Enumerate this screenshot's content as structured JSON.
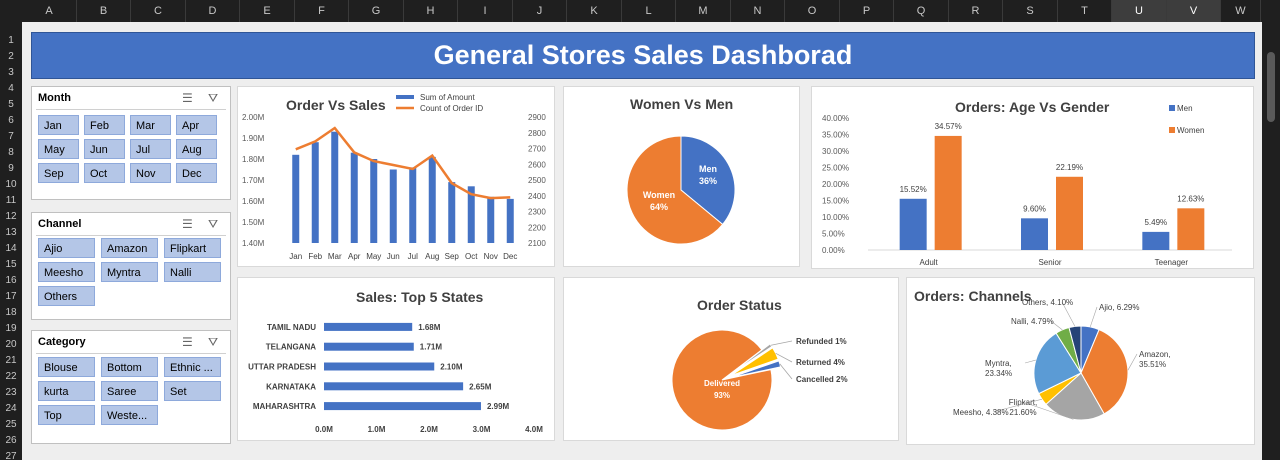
{
  "columns": [
    "A",
    "B",
    "C",
    "D",
    "E",
    "F",
    "G",
    "H",
    "I",
    "J",
    "K",
    "L",
    "M",
    "N",
    "O",
    "P",
    "Q",
    "R",
    "S",
    "T",
    "U",
    "V",
    "W"
  ],
  "rows": [
    "1",
    "2",
    "3",
    "4",
    "5",
    "6",
    "7",
    "8",
    "9",
    "10",
    "11",
    "12",
    "13",
    "14",
    "15",
    "16",
    "17",
    "18",
    "19",
    "20",
    "21",
    "22",
    "23",
    "24",
    "25",
    "26",
    "27"
  ],
  "dashboard": {
    "title": "General Stores Sales Dashborad"
  },
  "slicers": {
    "month": {
      "title": "Month",
      "items": [
        "Jan",
        "Feb",
        "Mar",
        "Apr",
        "May",
        "Jun",
        "Jul",
        "Aug",
        "Sep",
        "Oct",
        "Nov",
        "Dec"
      ]
    },
    "channel": {
      "title": "Channel",
      "items": [
        "Ajio",
        "Amazon",
        "Flipkart",
        "Meesho",
        "Myntra",
        "Nalli",
        "Others"
      ]
    },
    "category": {
      "title": "Category",
      "items": [
        "Blouse",
        "Bottom",
        "Ethnic ...",
        "kurta",
        "Saree",
        "Set",
        "Top",
        "Weste..."
      ]
    }
  },
  "icons": {
    "multiselect": "multi-select-icon",
    "clear_filter": "clear-filter-icon"
  },
  "colors": {
    "blue": "#4472c4",
    "orange": "#ed7d31",
    "gray": "#a5a5a5",
    "yellow": "#ffc000",
    "green": "#70ad47",
    "navy": "#264478",
    "banner": "#4472c4"
  },
  "chart_data": [
    {
      "id": "order-vs-sales",
      "type": "bar",
      "title": "Order Vs Sales",
      "categories": [
        "Jan",
        "Feb",
        "Mar",
        "Apr",
        "May",
        "Jun",
        "Jul",
        "Aug",
        "Sep",
        "Oct",
        "Nov",
        "Dec"
      ],
      "series": [
        {
          "name": "Sum of Amount",
          "kind": "bar",
          "axis": "left",
          "values": [
            1.82,
            1.88,
            1.93,
            1.83,
            1.8,
            1.75,
            1.76,
            1.81,
            1.69,
            1.67,
            1.62,
            1.61
          ]
        },
        {
          "name": "Count of Order ID",
          "kind": "line",
          "axis": "right",
          "values": [
            2695,
            2745,
            2830,
            2675,
            2620,
            2595,
            2570,
            2655,
            2480,
            2410,
            2385,
            2390
          ]
        }
      ],
      "left_ticks": [
        "1.40M",
        "1.50M",
        "1.60M",
        "1.70M",
        "1.80M",
        "1.90M",
        "2.00M"
      ],
      "right_ticks": [
        "2100",
        "2200",
        "2300",
        "2400",
        "2500",
        "2600",
        "2700",
        "2800",
        "2900"
      ],
      "ylim": [
        1.4,
        2.0
      ],
      "y2lim": [
        2100,
        2900
      ],
      "legend": "top"
    },
    {
      "id": "women-vs-men",
      "type": "pie",
      "title": "Women Vs Men",
      "slices": [
        {
          "name": "Men",
          "value": 36,
          "label": "36%"
        },
        {
          "name": "Women",
          "value": 64,
          "label": "64%"
        }
      ]
    },
    {
      "id": "age-vs-gender",
      "type": "bar",
      "title": "Orders: Age Vs Gender",
      "categories": [
        "Adult",
        "Senior",
        "Teenager"
      ],
      "series": [
        {
          "name": "Men",
          "values": [
            15.52,
            9.6,
            5.49
          ],
          "labels": [
            "15.52%",
            "9.60%",
            "5.49%"
          ]
        },
        {
          "name": "Women",
          "values": [
            34.57,
            22.19,
            12.63
          ],
          "labels": [
            "34.57%",
            "22.19%",
            "12.63%"
          ]
        }
      ],
      "ticks": [
        "0.00%",
        "5.00%",
        "10.00%",
        "15.00%",
        "20.00%",
        "25.00%",
        "30.00%",
        "35.00%",
        "40.00%"
      ],
      "ylim": [
        0,
        40
      ],
      "legend": "right"
    },
    {
      "id": "top5-states",
      "type": "bar",
      "orientation": "horizontal",
      "title": "Sales: Top 5 States",
      "categories": [
        "TAMIL NADU",
        "TELANGANA",
        "UTTAR PRADESH",
        "KARNATAKA",
        "MAHARASHTRA"
      ],
      "values": [
        1.68,
        1.71,
        2.1,
        2.65,
        2.99
      ],
      "labels": [
        "1.68M",
        "1.71M",
        "2.10M",
        "2.65M",
        "2.99M"
      ],
      "ticks": [
        "0.0M",
        "1.0M",
        "2.0M",
        "3.0M",
        "4.0M"
      ],
      "xlim": [
        0,
        4
      ]
    },
    {
      "id": "order-status",
      "type": "pie",
      "title": "Order Status",
      "slices": [
        {
          "name": "Delivered",
          "value": 93,
          "label": "93%"
        },
        {
          "name": "Refunded",
          "value": 1,
          "label": "1%"
        },
        {
          "name": "Returned",
          "value": 4,
          "label": "4%"
        },
        {
          "name": "Cancelled",
          "value": 2,
          "label": "2%"
        }
      ]
    },
    {
      "id": "orders-channels",
      "type": "pie",
      "title": "Orders: Channels",
      "slices": [
        {
          "name": "Ajio",
          "value": 6.29,
          "label": "6.29%"
        },
        {
          "name": "Amazon",
          "value": 35.51,
          "label": "35.51%"
        },
        {
          "name": "Flipkart",
          "value": 21.6,
          "label": "21.60%"
        },
        {
          "name": "Meesho",
          "value": 4.38,
          "label": "4.38%"
        },
        {
          "name": "Myntra",
          "value": 23.34,
          "label": "23.34%"
        },
        {
          "name": "Nalli",
          "value": 4.79,
          "label": "4.79%"
        },
        {
          "name": "Others",
          "value": 4.1,
          "label": "4.10%"
        }
      ]
    }
  ]
}
